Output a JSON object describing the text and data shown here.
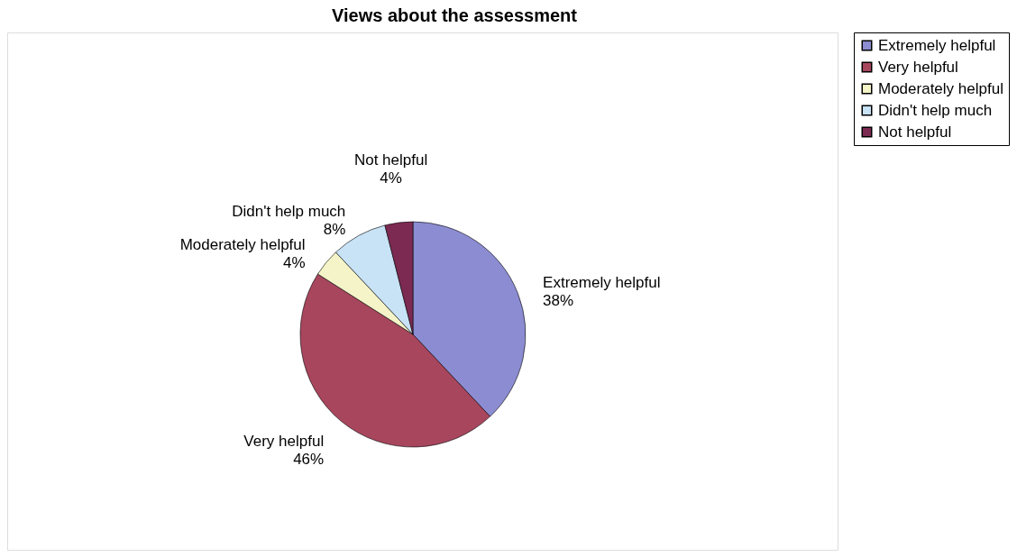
{
  "chart_data": {
    "type": "pie",
    "title": "Views about the assessment",
    "categories": [
      "Extremely helpful",
      "Very helpful",
      "Moderately helpful",
      "Didn't help much",
      "Not helpful"
    ],
    "values": [
      38,
      46,
      4,
      8,
      4
    ],
    "value_labels": [
      "38%",
      "46%",
      "4%",
      "8%",
      "4%"
    ],
    "colors": [
      "#8c8cd2",
      "#a8465e",
      "#f4f4c8",
      "#c8e2f6",
      "#7c2a52"
    ],
    "legend": "right"
  }
}
